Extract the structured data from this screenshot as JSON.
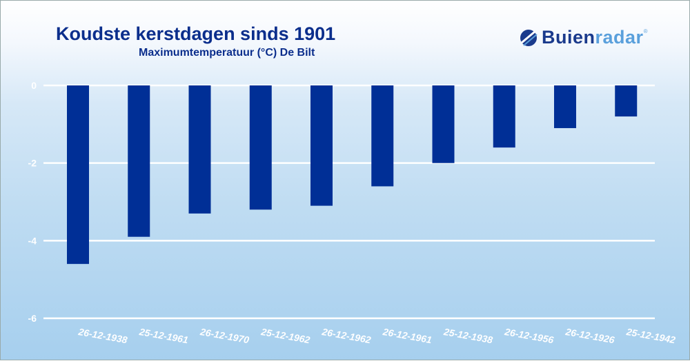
{
  "chart_data": {
    "type": "bar",
    "title": "Koudste kerstdagen sinds 1901",
    "subtitle": "Maximumtemperatuur (°C) De Bilt",
    "categories": [
      "26-12-1938",
      "25-12-1961",
      "26-12-1970",
      "25-12-1962",
      "26-12-1962",
      "26-12-1961",
      "25-12-1938",
      "26-12-1956",
      "26-12-1926",
      "25-12-1942"
    ],
    "values": [
      -4.6,
      -3.9,
      -3.3,
      -3.2,
      -3.1,
      -2.6,
      -2.0,
      -1.6,
      -1.1,
      -0.8
    ],
    "xlabel": "",
    "ylabel": "",
    "ylim": [
      -6,
      0
    ],
    "yticks": [
      "0",
      "-2",
      "-4",
      "-6"
    ],
    "grid": true,
    "bar_color": "#002f96",
    "grid_color": "#ffffff"
  },
  "logo": {
    "part1": "Buien",
    "part2": "radar",
    "reg": "®"
  }
}
